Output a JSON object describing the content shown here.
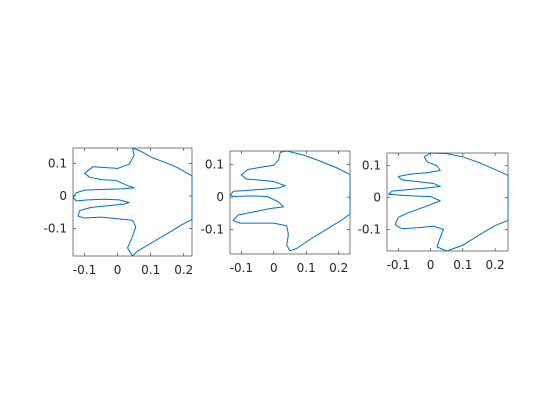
{
  "chart_data": [
    {
      "type": "line",
      "title": "",
      "xlabel": "",
      "ylabel": "",
      "xlim": [
        -0.135,
        0.225
      ],
      "ylim": [
        -0.185,
        0.148
      ],
      "xticks": [
        -0.1,
        0,
        0.1,
        0.2
      ],
      "xtick_labels": [
        "-0.1",
        "0",
        "0.1",
        "0.2"
      ],
      "yticks": [
        0.1,
        0,
        -0.1
      ],
      "ytick_labels": [
        "0.1",
        "0",
        "-0.1"
      ],
      "grid": false,
      "series": [
        {
          "color": "#0072BD",
          "x": [
            0.225,
            0.18,
            0.14,
            0.105,
            0.07,
            0.045,
            0.05,
            0.035,
            0.0,
            -0.04,
            -0.075,
            -0.1,
            -0.085,
            -0.045,
            -0.005,
            0.035,
            0.05,
            0.01,
            -0.05,
            -0.1,
            -0.125,
            -0.135,
            -0.125,
            -0.09,
            -0.04,
            0.005,
            0.035,
            0.02,
            -0.03,
            -0.08,
            -0.115,
            -0.12,
            -0.1,
            -0.05,
            0.0,
            0.045,
            0.055,
            0.045,
            0.03,
            0.045,
            0.06,
            0.11,
            0.16,
            0.195,
            0.225
          ],
          "y": [
            0.062,
            0.088,
            0.105,
            0.118,
            0.138,
            0.148,
            0.125,
            0.098,
            0.085,
            0.088,
            0.09,
            0.07,
            0.058,
            0.05,
            0.048,
            0.03,
            0.025,
            0.022,
            0.02,
            0.018,
            0.01,
            -0.005,
            -0.015,
            -0.012,
            -0.01,
            -0.012,
            -0.02,
            -0.025,
            -0.03,
            -0.035,
            -0.045,
            -0.062,
            -0.068,
            -0.065,
            -0.07,
            -0.075,
            -0.095,
            -0.125,
            -0.16,
            -0.185,
            -0.17,
            -0.14,
            -0.11,
            -0.088,
            -0.072
          ]
        }
      ]
    },
    {
      "type": "line",
      "title": "",
      "xlabel": "",
      "ylabel": "",
      "xlim": [
        -0.135,
        0.235
      ],
      "ylim": [
        -0.175,
        0.142
      ],
      "xticks": [
        -0.1,
        0,
        0.1,
        0.2
      ],
      "xtick_labels": [
        "-0.1",
        "0",
        "0.1",
        "0.2"
      ],
      "yticks": [
        0.1,
        0,
        -0.1
      ],
      "ytick_labels": [
        "0.1",
        "0",
        "-0.1"
      ],
      "grid": false,
      "series": [
        {
          "color": "#0072BD",
          "x": [
            0.235,
            0.19,
            0.14,
            0.09,
            0.04,
            0.02,
            0.015,
            0.0,
            -0.04,
            -0.08,
            -0.1,
            -0.085,
            -0.04,
            0.0,
            0.035,
            0.015,
            -0.04,
            -0.09,
            -0.125,
            -0.135,
            -0.12,
            -0.07,
            -0.02,
            0.015,
            0.03,
            -0.01,
            -0.06,
            -0.11,
            -0.125,
            -0.105,
            -0.05,
            0.0,
            0.04,
            0.045,
            0.04,
            0.05,
            0.07,
            0.115,
            0.165,
            0.21,
            0.235
          ],
          "y": [
            0.07,
            0.092,
            0.112,
            0.13,
            0.142,
            0.138,
            0.115,
            0.098,
            0.092,
            0.085,
            0.068,
            0.056,
            0.052,
            0.048,
            0.035,
            0.028,
            0.024,
            0.02,
            0.018,
            0.005,
            0.002,
            0.004,
            0.002,
            -0.015,
            -0.03,
            -0.035,
            -0.045,
            -0.055,
            -0.072,
            -0.08,
            -0.08,
            -0.08,
            -0.088,
            -0.115,
            -0.148,
            -0.165,
            -0.158,
            -0.128,
            -0.098,
            -0.07,
            -0.052
          ]
        }
      ]
    },
    {
      "type": "line",
      "title": "",
      "xlabel": "",
      "ylabel": "",
      "xlim": [
        -0.135,
        0.24
      ],
      "ylim": [
        -0.168,
        0.14
      ],
      "xticks": [
        -0.1,
        0,
        0.1,
        0.2
      ],
      "xtick_labels": [
        "-0.1",
        "0",
        "0.1",
        "0.2"
      ],
      "yticks": [
        0.1,
        0,
        -0.1
      ],
      "ytick_labels": [
        "0.1",
        "0",
        "-0.1"
      ],
      "grid": false,
      "series": [
        {
          "color": "#0072BD",
          "x": [
            0.24,
            0.2,
            0.15,
            0.1,
            0.05,
            0.0,
            -0.02,
            -0.01,
            0.02,
            0.03,
            -0.01,
            -0.06,
            -0.1,
            -0.09,
            -0.04,
            0.01,
            0.03,
            -0.01,
            -0.07,
            -0.12,
            -0.13,
            -0.1,
            -0.05,
            0.0,
            0.03,
            -0.02,
            -0.07,
            -0.1,
            -0.11,
            -0.09,
            -0.04,
            0.01,
            0.04,
            0.03,
            0.02,
            0.05,
            0.1,
            0.15,
            0.2,
            0.24
          ],
          "y": [
            0.07,
            0.088,
            0.11,
            0.128,
            0.138,
            0.14,
            0.128,
            0.112,
            0.1,
            0.085,
            0.078,
            0.074,
            0.066,
            0.056,
            0.05,
            0.044,
            0.035,
            0.03,
            0.025,
            0.02,
            0.01,
            0.008,
            0.005,
            0.003,
            -0.01,
            -0.03,
            -0.048,
            -0.062,
            -0.085,
            -0.098,
            -0.095,
            -0.09,
            -0.1,
            -0.125,
            -0.155,
            -0.168,
            -0.15,
            -0.118,
            -0.088,
            -0.072
          ]
        }
      ]
    }
  ]
}
